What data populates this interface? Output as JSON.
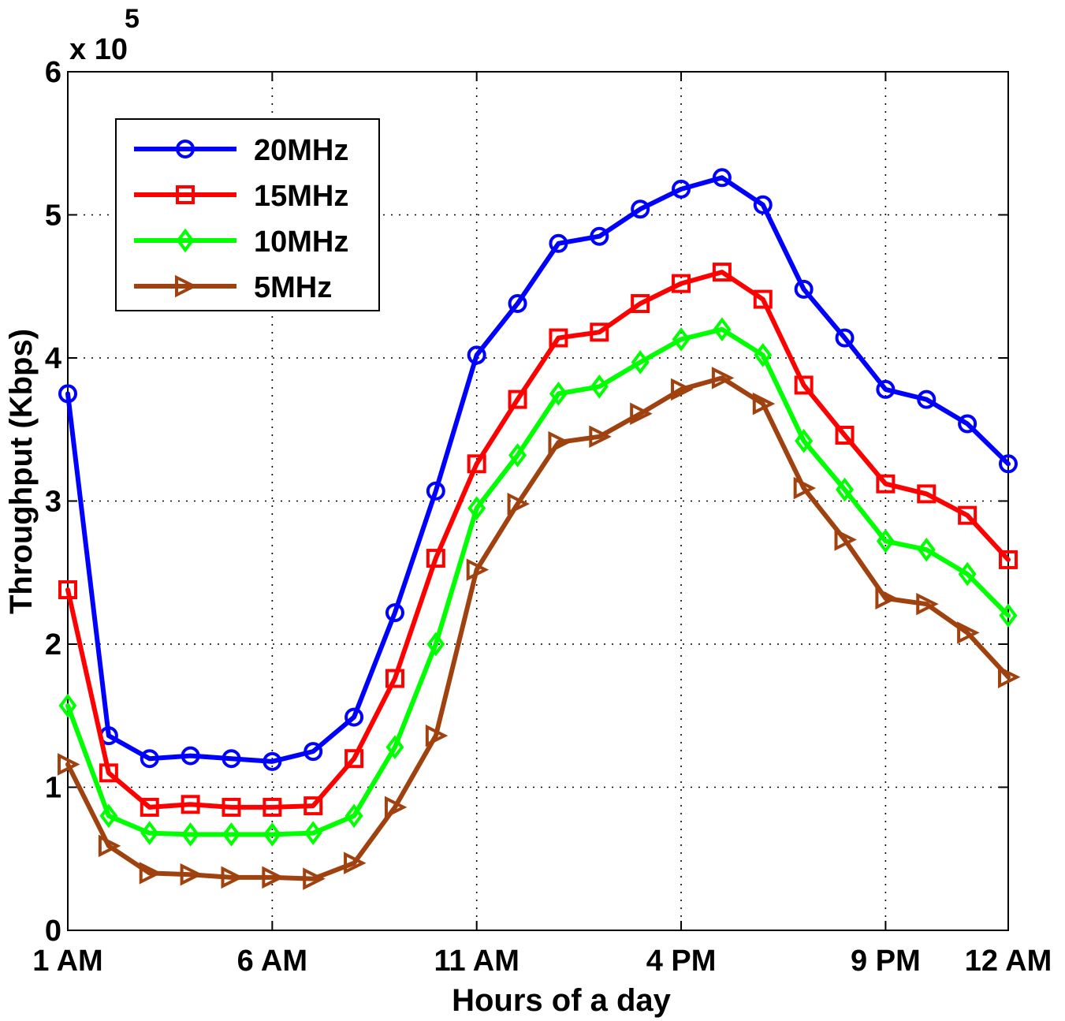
{
  "chart_data": {
    "type": "line",
    "title": "",
    "xlabel": "Hours of a day",
    "ylabel": "Throughput (Kbps)",
    "y_multiplier_base": "x 10",
    "y_multiplier_exp": "5",
    "xlim": [
      1,
      24
    ],
    "ylim": [
      0,
      6
    ],
    "x_ticks": [
      {
        "value": 1,
        "label": "1 AM"
      },
      {
        "value": 6,
        "label": "6 AM"
      },
      {
        "value": 11,
        "label": "11 AM"
      },
      {
        "value": 16,
        "label": "4 PM"
      },
      {
        "value": 21,
        "label": "9 PM"
      },
      {
        "value": 24,
        "label": "12 AM"
      }
    ],
    "y_ticks": [
      {
        "value": 0,
        "label": "0"
      },
      {
        "value": 1,
        "label": "1"
      },
      {
        "value": 2,
        "label": "2"
      },
      {
        "value": 3,
        "label": "3"
      },
      {
        "value": 4,
        "label": "4"
      },
      {
        "value": 5,
        "label": "5"
      },
      {
        "value": 6,
        "label": "6"
      }
    ],
    "grid": true,
    "legend_position": "top-left",
    "x": [
      1,
      2,
      3,
      4,
      5,
      6,
      7,
      8,
      9,
      10,
      11,
      12,
      13,
      14,
      15,
      16,
      17,
      18,
      19,
      20,
      21,
      22,
      23,
      24
    ],
    "series": [
      {
        "name": "20MHz",
        "color": "#0000ff",
        "marker": "circle",
        "values": [
          3.75,
          1.36,
          1.2,
          1.22,
          1.2,
          1.18,
          1.25,
          1.49,
          2.22,
          3.07,
          4.02,
          4.38,
          4.8,
          4.85,
          5.04,
          5.18,
          5.26,
          5.07,
          4.48,
          4.14,
          3.78,
          3.71,
          3.54,
          3.26
        ]
      },
      {
        "name": "15MHz",
        "color": "#ff0000",
        "marker": "square",
        "values": [
          2.38,
          1.1,
          0.86,
          0.88,
          0.86,
          0.86,
          0.87,
          1.2,
          1.76,
          2.6,
          3.26,
          3.71,
          4.14,
          4.18,
          4.38,
          4.52,
          4.6,
          4.41,
          3.81,
          3.46,
          3.12,
          3.05,
          2.9,
          2.59
        ]
      },
      {
        "name": "10MHz",
        "color": "#00ff00",
        "marker": "diamond",
        "values": [
          1.57,
          0.8,
          0.68,
          0.67,
          0.67,
          0.67,
          0.68,
          0.8,
          1.28,
          2.0,
          2.95,
          3.32,
          3.75,
          3.8,
          3.97,
          4.13,
          4.2,
          4.02,
          3.42,
          3.08,
          2.72,
          2.66,
          2.49,
          2.2
        ]
      },
      {
        "name": "5MHz",
        "color": "#a0420f",
        "marker": "triangle-right",
        "values": [
          1.16,
          0.59,
          0.4,
          0.39,
          0.37,
          0.37,
          0.36,
          0.47,
          0.86,
          1.36,
          2.52,
          2.98,
          3.41,
          3.45,
          3.61,
          3.78,
          3.86,
          3.68,
          3.09,
          2.73,
          2.32,
          2.28,
          2.08,
          1.77
        ]
      }
    ]
  }
}
